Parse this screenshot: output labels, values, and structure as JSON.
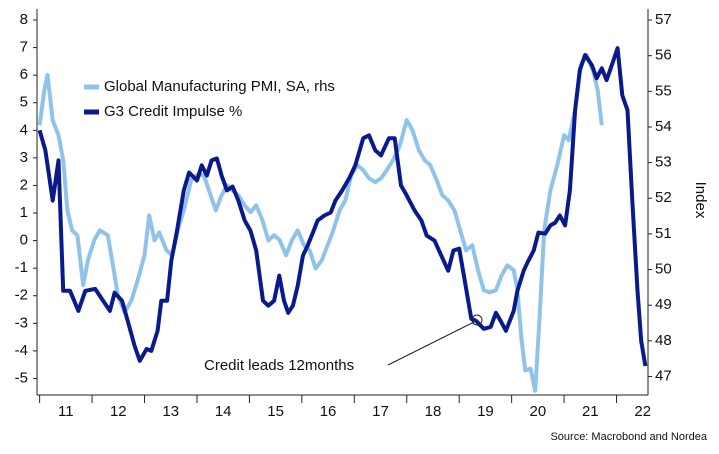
{
  "chart_data": {
    "type": "line",
    "annotation": "Credit leads 12months",
    "source": "Source: Macrobond and Nordea",
    "y2label": "Index",
    "xlim": [
      2010.95,
      2022.6
    ],
    "ylim": [
      -5.6,
      8.4
    ],
    "y2lim": [
      46.48,
      57.31
    ],
    "yticks": [
      -5,
      -4,
      -3,
      -2,
      -1,
      0,
      1,
      2,
      3,
      4,
      5,
      6,
      7,
      8
    ],
    "y2ticks": [
      47,
      48,
      49,
      50,
      51,
      52,
      53,
      54,
      55,
      56,
      57
    ],
    "xticks": [
      {
        "value": 2011,
        "label": "11"
      },
      {
        "value": 2012,
        "label": "12"
      },
      {
        "value": 2013,
        "label": "13"
      },
      {
        "value": 2014,
        "label": "14"
      },
      {
        "value": 2015,
        "label": "15"
      },
      {
        "value": 2016,
        "label": "16"
      },
      {
        "value": 2017,
        "label": "17"
      },
      {
        "value": 2018,
        "label": "18"
      },
      {
        "value": 2019,
        "label": "19"
      },
      {
        "value": 2020,
        "label": "20"
      },
      {
        "value": 2021,
        "label": "21"
      },
      {
        "value": 2022,
        "label": "22"
      }
    ],
    "series": [
      {
        "name": "Global Manufacturing PMI, SA, rhs",
        "color": "#8fc3ea",
        "axis": "y2",
        "x": [
          2011.0,
          2011.09,
          2011.15,
          2011.25,
          2011.36,
          2011.45,
          2011.53,
          2011.62,
          2011.72,
          2011.83,
          2011.92,
          2012.04,
          2012.15,
          2012.3,
          2012.4,
          2012.49,
          2012.62,
          2012.75,
          2012.87,
          2013.0,
          2013.09,
          2013.19,
          2013.28,
          2013.42,
          2013.53,
          2013.66,
          2013.75,
          2013.89,
          2014.0,
          2014.13,
          2014.23,
          2014.36,
          2014.47,
          2014.57,
          2014.68,
          2014.79,
          2014.91,
          2015.02,
          2015.13,
          2015.25,
          2015.36,
          2015.47,
          2015.58,
          2015.7,
          2015.81,
          2015.92,
          2016.04,
          2016.15,
          2016.26,
          2016.38,
          2016.49,
          2016.6,
          2016.72,
          2016.83,
          2016.94,
          2017.06,
          2017.17,
          2017.28,
          2017.4,
          2017.51,
          2017.62,
          2017.74,
          2017.87,
          2018.0,
          2018.11,
          2018.23,
          2018.34,
          2018.45,
          2018.57,
          2018.68,
          2018.79,
          2018.91,
          2019.02,
          2019.13,
          2019.25,
          2019.36,
          2019.47,
          2019.58,
          2019.7,
          2019.81,
          2019.92,
          2020.04,
          2020.11,
          2020.19,
          2020.26,
          2020.36,
          2020.45,
          2020.53,
          2020.62,
          2020.74,
          2020.87,
          2021.0,
          2021.09,
          2021.21,
          2021.32,
          2021.43,
          2021.55,
          2021.64,
          2021.72
        ],
        "values": [
          54.05,
          55.03,
          55.46,
          54.19,
          53.77,
          53.07,
          51.66,
          51.1,
          50.96,
          49.56,
          50.26,
          50.82,
          51.1,
          50.96,
          50.12,
          49.28,
          48.8,
          49.13,
          49.7,
          50.4,
          51.52,
          50.82,
          51.04,
          50.54,
          50.4,
          51.24,
          51.66,
          52.51,
          52.65,
          52.65,
          52.22,
          51.66,
          52.08,
          52.37,
          52.22,
          52.08,
          51.8,
          51.61,
          51.8,
          51.38,
          50.82,
          50.96,
          50.82,
          50.4,
          50.82,
          51.1,
          50.68,
          50.54,
          50.03,
          50.26,
          50.68,
          51.1,
          51.66,
          51.94,
          52.65,
          52.93,
          52.79,
          52.56,
          52.45,
          52.56,
          52.79,
          53.07,
          53.49,
          54.19,
          53.91,
          53.35,
          53.07,
          52.93,
          52.51,
          52.08,
          51.94,
          51.66,
          51.1,
          50.54,
          50.68,
          49.98,
          49.42,
          49.36,
          49.42,
          49.84,
          50.12,
          49.98,
          49.42,
          48.01,
          47.17,
          47.22,
          46.6,
          48.57,
          51.1,
          52.22,
          52.93,
          53.77,
          53.63,
          54.47,
          55.74,
          56.02,
          55.6,
          55.03,
          54.05
        ]
      },
      {
        "name": "G3 Credit Impulse %",
        "color": "#0a1a8c",
        "x": [
          2011.0,
          2011.11,
          2011.25,
          2011.36,
          2011.45,
          2011.58,
          2011.74,
          2011.87,
          2012.06,
          2012.21,
          2012.34,
          2012.43,
          2012.57,
          2012.68,
          2012.81,
          2012.91,
          2013.04,
          2013.13,
          2013.25,
          2013.32,
          2013.43,
          2013.51,
          2013.62,
          2013.75,
          2013.85,
          2014.0,
          2014.09,
          2014.19,
          2014.28,
          2014.38,
          2014.47,
          2014.57,
          2014.68,
          2014.79,
          2014.91,
          2015.02,
          2015.13,
          2015.26,
          2015.36,
          2015.47,
          2015.57,
          2015.66,
          2015.74,
          2015.83,
          2015.92,
          2016.02,
          2016.11,
          2016.21,
          2016.3,
          2016.43,
          2016.55,
          2016.64,
          2016.77,
          2016.91,
          2017.02,
          2017.17,
          2017.28,
          2017.4,
          2017.51,
          2017.66,
          2017.77,
          2017.89,
          2018.0,
          2018.15,
          2018.28,
          2018.38,
          2018.53,
          2018.66,
          2018.79,
          2018.89,
          2019.0,
          2019.09,
          2019.23,
          2019.32,
          2019.47,
          2019.6,
          2019.7,
          2019.79,
          2019.89,
          2020.04,
          2020.11,
          2020.23,
          2020.3,
          2020.42,
          2020.51,
          2020.64,
          2020.74,
          2020.83,
          2020.92,
          2021.02,
          2021.11,
          2021.21,
          2021.3,
          2021.4,
          2021.53,
          2021.62,
          2021.72,
          2021.81,
          2021.91,
          2022.02,
          2022.11,
          2022.21,
          2022.3,
          2022.4,
          2022.47,
          2022.55
        ],
        "values": [
          4.0,
          3.27,
          1.45,
          2.91,
          -1.82,
          -1.82,
          -2.55,
          -1.82,
          -1.75,
          -2.18,
          -2.55,
          -1.89,
          -2.18,
          -2.91,
          -3.82,
          -4.36,
          -3.93,
          -4.0,
          -3.27,
          -2.18,
          -2.18,
          -0.73,
          0.36,
          1.82,
          2.47,
          2.18,
          2.73,
          2.36,
          2.91,
          2.98,
          2.36,
          1.82,
          1.96,
          1.45,
          0.73,
          0.36,
          -0.36,
          -2.18,
          -2.36,
          -2.18,
          -1.27,
          -2.18,
          -2.62,
          -2.36,
          -1.64,
          -0.55,
          -0.18,
          0.29,
          0.73,
          0.91,
          1.02,
          1.45,
          1.82,
          2.29,
          2.73,
          3.71,
          3.82,
          3.27,
          3.09,
          3.71,
          3.71,
          2.0,
          1.64,
          1.09,
          0.73,
          0.18,
          0.0,
          -0.55,
          -1.09,
          -0.36,
          -0.29,
          -1.27,
          -2.84,
          -2.91,
          -3.2,
          -3.13,
          -2.62,
          -2.91,
          -3.27,
          -2.55,
          -1.82,
          -1.09,
          -0.8,
          -0.36,
          0.29,
          0.25,
          0.55,
          0.65,
          0.91,
          0.55,
          1.82,
          4.73,
          6.18,
          6.73,
          6.36,
          5.89,
          6.25,
          5.82,
          6.36,
          6.98,
          5.27,
          4.73,
          1.45,
          -1.82,
          -3.64,
          -4.55
        ]
      }
    ]
  }
}
